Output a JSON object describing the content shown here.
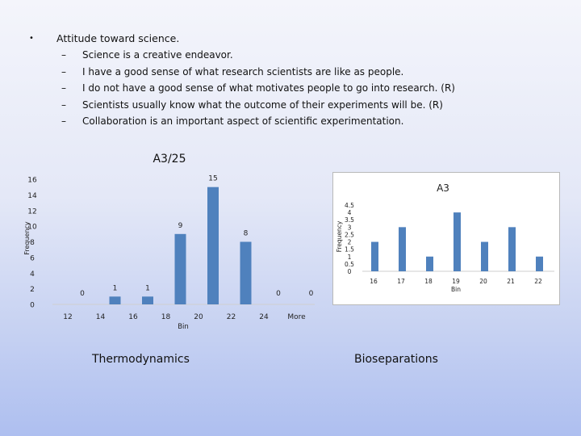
{
  "slide": {
    "bullet_main": "Attitude toward science.",
    "sub_items": [
      "Science is a creative endeavor.",
      "I have a good sense of what research scientists are like as people.",
      "I do not have a good sense of what motivates people to go into research. (R)",
      "Scientists usually know what the outcome of their experiments will be. (R)",
      "Collaboration is an important aspect of scientific experimentation."
    ],
    "bullet_glyph": "•",
    "dash_glyph": "–",
    "caption_left": "Thermodynamics",
    "caption_right": "Bioseparations"
  },
  "colors": {
    "bar": "#4f81bd",
    "panel_border": "#b9b9b9",
    "axis": "#cfcfcf"
  },
  "chart_data": [
    {
      "type": "bar",
      "title": "A3/25",
      "xlabel": "Bin",
      "ylabel": "Frequency",
      "categories": [
        "12",
        "14",
        "16",
        "18",
        "20",
        "22",
        "24",
        "More"
      ],
      "values": [
        0,
        1,
        1,
        9,
        15,
        8,
        0,
        0
      ],
      "data_labels": [
        "0",
        "1",
        "1",
        "9",
        "15",
        "8",
        "0",
        "0"
      ],
      "ylim": [
        0,
        16
      ],
      "yticks": [
        "0",
        "2",
        "4",
        "6",
        "8",
        "10",
        "12",
        "14",
        "16"
      ],
      "grid": false,
      "legend": "none"
    },
    {
      "type": "bar",
      "title": "A3",
      "xlabel": "Bin",
      "ylabel": "Frequency",
      "categories": [
        "16",
        "17",
        "18",
        "19",
        "20",
        "21",
        "22"
      ],
      "values": [
        2,
        3,
        1,
        4,
        2,
        3,
        1
      ],
      "ylim": [
        0,
        4.5
      ],
      "yticks": [
        "0",
        "0.5",
        "1",
        "1.5",
        "2",
        "2.5",
        "3",
        "3.5",
        "4",
        "4.5"
      ],
      "grid": false,
      "legend": "none"
    }
  ]
}
